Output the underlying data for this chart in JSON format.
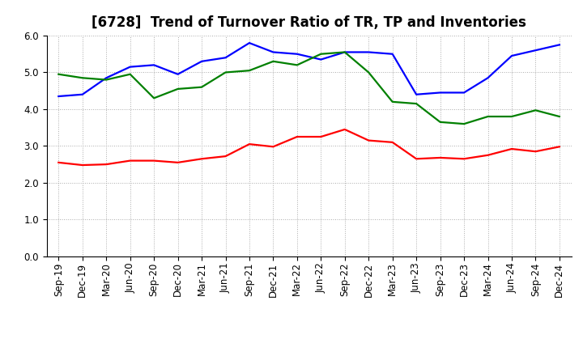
{
  "title": "[6728]  Trend of Turnover Ratio of TR, TP and Inventories",
  "labels": [
    "Sep-19",
    "Dec-19",
    "Mar-20",
    "Jun-20",
    "Sep-20",
    "Dec-20",
    "Mar-21",
    "Jun-21",
    "Sep-21",
    "Dec-21",
    "Mar-22",
    "Jun-22",
    "Sep-22",
    "Dec-22",
    "Mar-23",
    "Jun-23",
    "Sep-23",
    "Dec-23",
    "Mar-24",
    "Jun-24",
    "Sep-24",
    "Dec-24"
  ],
  "trade_receivables": [
    2.55,
    2.48,
    2.5,
    2.6,
    2.6,
    2.55,
    2.65,
    2.72,
    3.05,
    2.98,
    3.25,
    3.25,
    3.45,
    3.15,
    3.1,
    2.65,
    2.68,
    2.65,
    2.75,
    2.92,
    2.85,
    2.98
  ],
  "trade_payables": [
    4.35,
    4.4,
    4.85,
    5.15,
    5.2,
    4.95,
    5.3,
    5.4,
    5.8,
    5.55,
    5.5,
    5.35,
    5.55,
    5.55,
    5.5,
    4.4,
    4.45,
    4.45,
    4.85,
    5.45,
    5.6,
    5.75
  ],
  "inventories": [
    4.95,
    4.85,
    4.8,
    4.95,
    4.3,
    4.55,
    4.6,
    5.0,
    5.05,
    5.3,
    5.2,
    5.5,
    5.55,
    5.0,
    4.2,
    4.15,
    3.65,
    3.6,
    3.8,
    3.8,
    3.97,
    3.8
  ],
  "color_tr": "#FF0000",
  "color_tp": "#0000FF",
  "color_inv": "#008000",
  "ylim": [
    0.0,
    6.0
  ],
  "yticks": [
    0.0,
    1.0,
    2.0,
    3.0,
    4.0,
    5.0,
    6.0
  ],
  "bg_color": "#FFFFFF",
  "grid_color": "#AAAAAA",
  "title_fontsize": 12,
  "legend_fontsize": 10,
  "tick_fontsize": 8.5
}
